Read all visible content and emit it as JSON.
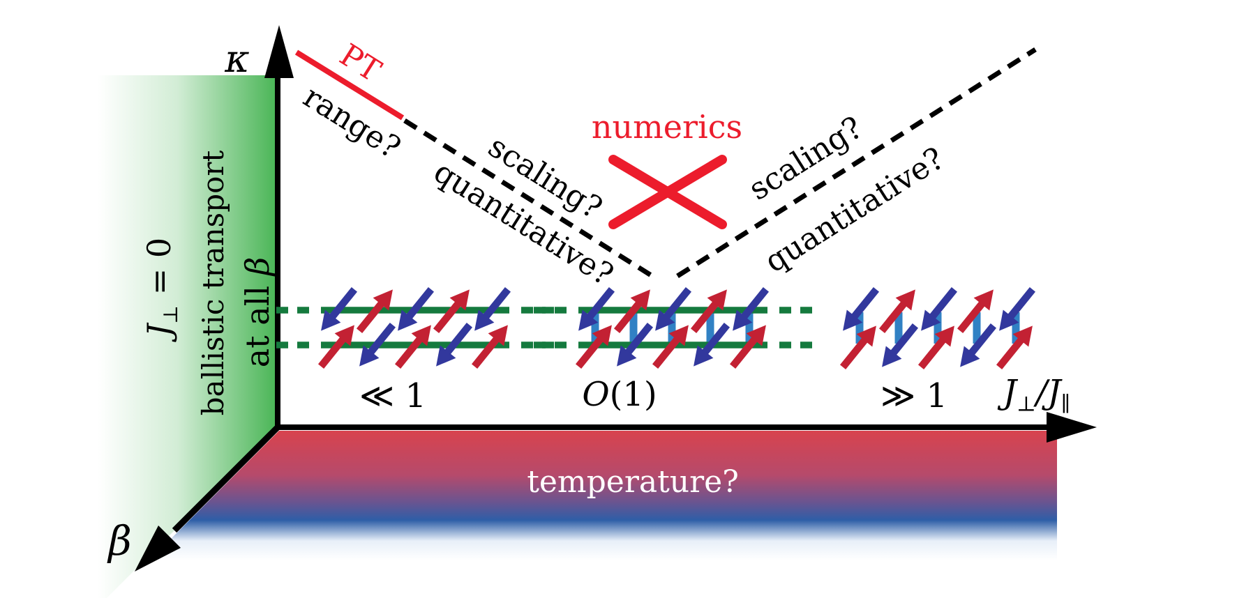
{
  "colors": {
    "accent_red": "#ec1c2c",
    "band_green": "#4cb658",
    "rail_green": "#157a3e",
    "rung_blue": "#3181c4",
    "spin_blue": "#32389d",
    "spin_red": "#c32133",
    "bar_red_top": "#d8434e",
    "bar_blue": "#2e5ea7",
    "axis_black": "#000000"
  },
  "axes": {
    "y_label": "κ",
    "beta_label": "β",
    "x_j": "J",
    "x_perp": "⊥",
    "x_mid": "/J",
    "x_par": "∥"
  },
  "band": {
    "line1_j": "J",
    "line1_sub": "⊥",
    "line1_eq": " = 0",
    "line2": "ballistic transport",
    "line3_text": "at all ",
    "line3_beta": "β"
  },
  "annotations": {
    "pt": "PT",
    "range": "range?",
    "scaling_left": "scaling?",
    "quantitative_left": "quantitative?",
    "numerics": "numerics",
    "scaling_right": "scaling?",
    "quantitative_right": "quantitative?",
    "temperature": "temperature?"
  },
  "regions": {
    "weak": "≪ 1",
    "intermediate_o": "O",
    "intermediate_rest": "(1)",
    "strong": "≫ 1"
  },
  "ladders": [
    {
      "name": "weak-coupling-ladder",
      "cols": [
        484,
        539,
        594,
        649,
        704
      ],
      "rails": true,
      "rungs": false,
      "rows": [
        445,
        496
      ],
      "rail_y": [
        445,
        495
      ],
      "top_pattern": [
        "blue",
        "red",
        "blue",
        "red",
        "blue"
      ]
    },
    {
      "name": "intermediate-coupling-ladder",
      "cols": [
        853,
        908,
        963,
        1018,
        1074
      ],
      "rails": true,
      "rungs": true,
      "rows": [
        445,
        496
      ],
      "rail_y": [
        445,
        495
      ],
      "top_pattern": [
        "blue",
        "red",
        "blue",
        "red",
        "blue"
      ]
    },
    {
      "name": "strong-coupling-dimers",
      "cols": [
        1232,
        1288,
        1344,
        1400,
        1456
      ],
      "rails": false,
      "rungs": true,
      "rows": [
        445,
        497
      ],
      "rail_y": [
        445,
        495
      ],
      "top_pattern": [
        "blue",
        "red",
        "blue",
        "red",
        "blue"
      ]
    }
  ]
}
